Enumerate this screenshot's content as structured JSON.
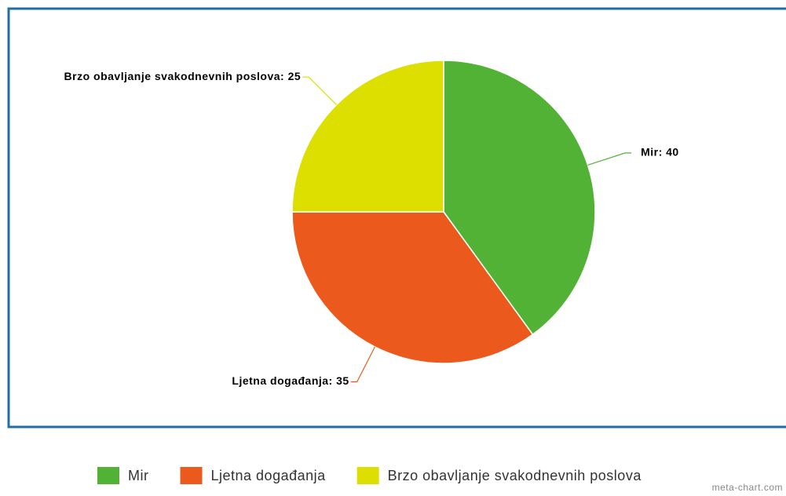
{
  "chart_data": {
    "type": "pie",
    "categories": [
      "Mir",
      "Ljetna događanja",
      "Brzo obavljanje svakodnevnih poslova"
    ],
    "values": [
      40,
      35,
      25
    ],
    "value_labels": [
      "Mir: 40",
      "Ljetna događanja: 35",
      "Brzo obavljanje svakodnevnih poslova: 25"
    ],
    "colors": [
      "#52b236",
      "#eb5a1c",
      "#dcdf00"
    ],
    "legend": "bottom",
    "watermark": "meta-chart.com"
  }
}
